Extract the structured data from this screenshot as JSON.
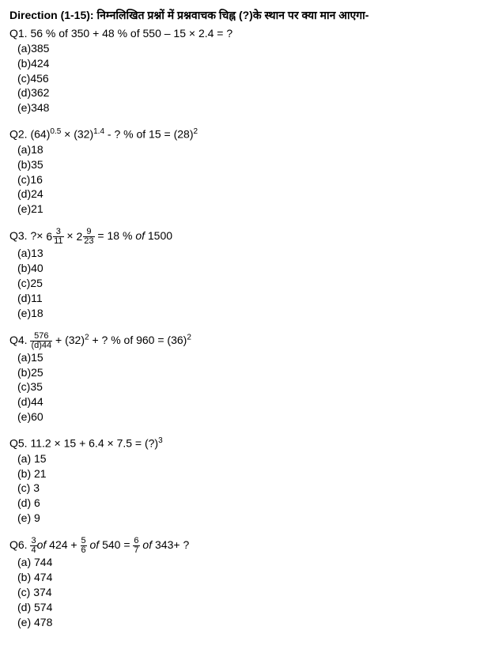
{
  "direction": "Direction (1-15): निम्नलिखित प्रश्नों में प्रश्नवाचक चिह्न (?)के स्थान पर क्या मान आएगा-",
  "q1": {
    "label": "Q1.  56 % of 350 + 48 % of 550 – 15 × 2.4 = ?",
    "a": "(a)385",
    "b": "(b)424",
    "c": "(c)456",
    "d": "(d)362",
    "e": "(e)348"
  },
  "q2": {
    "prefix": "Q2.  (64)",
    "exp1": "0.5",
    "mid1": " × (32)",
    "exp2": "1.4",
    "mid2": "  - ? % of 15 = (28)",
    "exp3": "2",
    "a": "(a)18",
    "b": "(b)35",
    "c": "(c)16",
    "d": "(d)24",
    "e": "(e)21"
  },
  "q3": {
    "prefix": "Q3.  ?× ",
    "w1": "6",
    "n1": "3",
    "d1": "11",
    "mid": " × ",
    "w2": "2",
    "n2": "9",
    "d2": "23",
    "suffix_eq": " = 18 % ",
    "suffix_of": "of ",
    "suffix_num": "1500",
    "a": "(a)13",
    "b": "(b)40",
    "c": "(c)25",
    "d": "(d)11",
    "e": "(e)18"
  },
  "q4": {
    "prefix": "Q4.  ",
    "n": "576",
    "d": "(d)44",
    "mid1": " + (32)",
    "exp1": "2",
    "mid2": " +  ? % of 960 = (36)",
    "exp2": "2",
    "a": "(a)15",
    "b": "(b)25",
    "c": "(c)35",
    "e": "(e)60"
  },
  "q5": {
    "prefix": "Q5.  11.2 × 15 + 6.4 × 7.5  = (?)",
    "exp": "3",
    "a": "(a) 15",
    "b": "(b) 21",
    "c": "(c) 3",
    "d": "(d) 6",
    "e": "(e) 9"
  },
  "q6": {
    "prefix": "Q6. ",
    "n1": "3",
    "d1": "4",
    "of1": "of ",
    "v1": "424 + ",
    "n2": "5",
    "d2": "6",
    "of2": " of ",
    "v2": "540 = ",
    "n3": "6",
    "d3": "7",
    "of3": " of ",
    "v3": "343+ ?",
    "a": "(a) 744",
    "b": "(b) 474",
    "c": "(c) 374",
    "d": "(d) 574",
    "e": "(e) 478"
  }
}
